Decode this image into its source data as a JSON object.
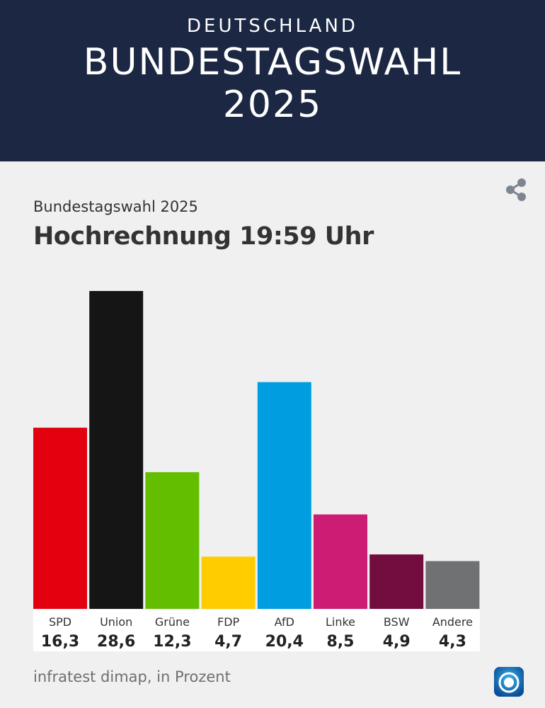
{
  "header": {
    "kicker": "DEUTSCHLAND",
    "title_line1": "BUNDESTAGSWAHL",
    "title_line2": "2025",
    "background": "#1b2743"
  },
  "card": {
    "subtitle": "Bundestagswahl 2025",
    "title": "Hochrechnung 19:59 Uhr",
    "share_icon": "share-icon",
    "source": "infratest dimap, in Prozent",
    "logo_icon": "ard-tagesschau-logo-icon"
  },
  "chart_data": {
    "type": "bar",
    "categories": [
      "SPD",
      "Union",
      "Grüne",
      "FDP",
      "AfD",
      "Linke",
      "BSW",
      "Andere"
    ],
    "values": [
      16.3,
      28.6,
      12.3,
      4.7,
      20.4,
      8.5,
      4.9,
      4.3
    ],
    "value_labels": [
      "16,3",
      "28,6",
      "12,3",
      "4,7",
      "20,4",
      "8,5",
      "4,9",
      "4,3"
    ],
    "colors": [
      "#e3000f",
      "#151515",
      "#64be00",
      "#ffcc00",
      "#009ee0",
      "#cc1c74",
      "#730c3f",
      "#707173"
    ],
    "title": "Hochrechnung 19:59 Uhr",
    "subtitle": "Bundestagswahl 2025",
    "xlabel": "",
    "ylabel": "",
    "unit": "Prozent",
    "ylim": [
      0,
      28.6
    ],
    "grid": false,
    "legend": "none"
  }
}
